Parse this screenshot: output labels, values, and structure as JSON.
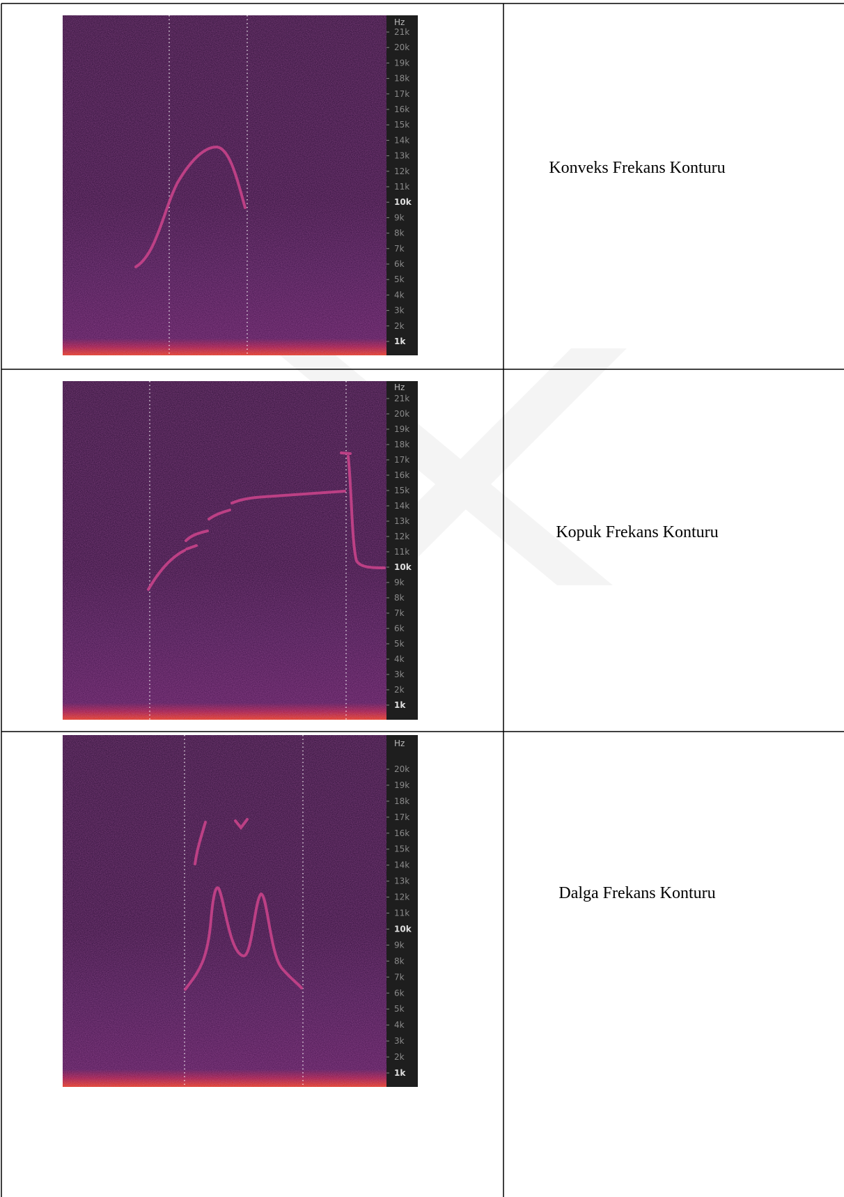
{
  "table": {
    "rows": [
      {
        "spectrogram": {
          "axis_labels": [
            "Hz",
            "21k",
            "20k",
            "19k",
            "18k",
            "17k",
            "16k",
            "15k",
            "14k",
            "13k",
            "12k",
            "11k",
            "10k",
            "9k",
            "8k",
            "7k",
            "6k",
            "5k",
            "4k",
            "3k",
            "2k",
            "1k"
          ]
        },
        "label": "Konveks Frekans Konturu"
      },
      {
        "spectrogram": {
          "axis_labels": [
            "Hz",
            "21k",
            "20k",
            "19k",
            "18k",
            "17k",
            "16k",
            "15k",
            "14k",
            "13k",
            "12k",
            "11k",
            "10k",
            "9k",
            "8k",
            "7k",
            "6k",
            "5k",
            "4k",
            "3k",
            "2k",
            "1k"
          ]
        },
        "label": "Kopuk Frekans Konturu"
      },
      {
        "spectrogram": {
          "axis_labels": [
            "Hz",
            "20k",
            "19k",
            "18k",
            "17k",
            "16k",
            "15k",
            "14k",
            "13k",
            "12k",
            "11k",
            "10k",
            "9k",
            "8k",
            "7k",
            "6k",
            "5k",
            "4k",
            "3k",
            "2k",
            "1k"
          ]
        },
        "label": "Dalga Frekans Konturu"
      }
    ]
  }
}
